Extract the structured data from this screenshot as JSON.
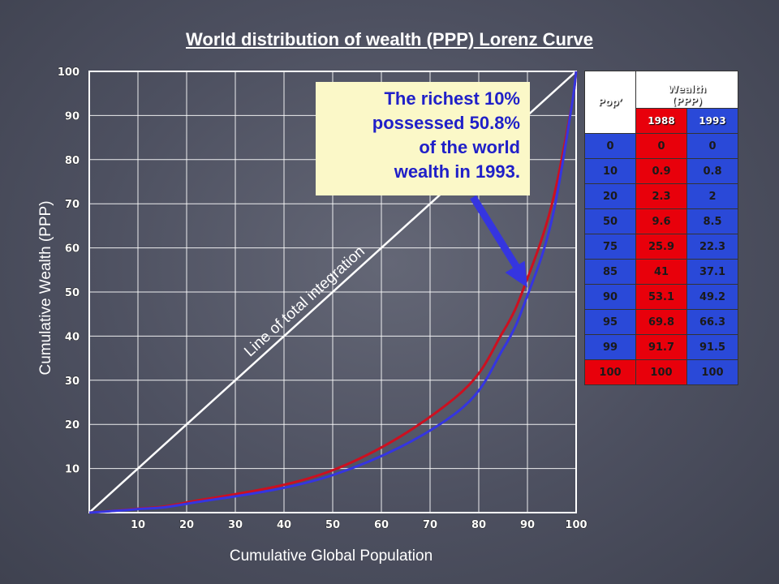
{
  "title": "World distribution of wealth (PPP) Lorenz Curve",
  "chart_data": {
    "type": "line",
    "xlabel": "Cumulative Global Population",
    "ylabel": "Cumulative Wealth (PPP)",
    "xlim": [
      0,
      100
    ],
    "ylim": [
      0,
      100
    ],
    "x_ticks": [
      "10",
      "20",
      "30",
      "40",
      "50",
      "60",
      "70",
      "80",
      "90",
      "100"
    ],
    "y_ticks": [
      "10",
      "20",
      "30",
      "40",
      "50",
      "60",
      "70",
      "80",
      "90",
      "100"
    ],
    "grid": true,
    "equality_line_label": "Line of total integration",
    "series": [
      {
        "color": "#cc1020",
        "x": [
          0,
          10,
          20,
          50,
          75,
          85,
          90,
          95,
          99,
          100
        ],
        "y": [
          0,
          0.9,
          2.3,
          9.6,
          25.9,
          41,
          53.1,
          69.8,
          91.7,
          100
        ]
      },
      {
        "color": "#3535e0",
        "x": [
          0,
          10,
          20,
          50,
          75,
          85,
          90,
          95,
          99,
          100
        ],
        "y": [
          0,
          0.8,
          2,
          8.5,
          22.3,
          37.1,
          49.2,
          66.3,
          91.5,
          100
        ]
      }
    ]
  },
  "annotation": {
    "lines": [
      "The richest 10%",
      "possessed 50.8%",
      "of the world",
      "wealth in 1993."
    ],
    "arrow_target": {
      "x": 90,
      "y": 51
    }
  },
  "table": {
    "header": {
      "pop": "Pop’",
      "wealth": "Wealth\n(PPP)"
    },
    "years": [
      "1988",
      "1993"
    ],
    "rows": [
      [
        "0",
        "0",
        "0"
      ],
      [
        "10",
        "0.9",
        "0.8"
      ],
      [
        "20",
        "2.3",
        "2"
      ],
      [
        "50",
        "9.6",
        "8.5"
      ],
      [
        "75",
        "25.9",
        "22.3"
      ],
      [
        "85",
        "41",
        "37.1"
      ],
      [
        "90",
        "53.1",
        "49.2"
      ],
      [
        "95",
        "69.8",
        "66.3"
      ],
      [
        "99",
        "91.7",
        "91.5"
      ],
      [
        "100",
        "100",
        "100"
      ]
    ],
    "colors": {
      "col_1988": "#e8000b",
      "col_1993": "#2a49d8"
    }
  }
}
